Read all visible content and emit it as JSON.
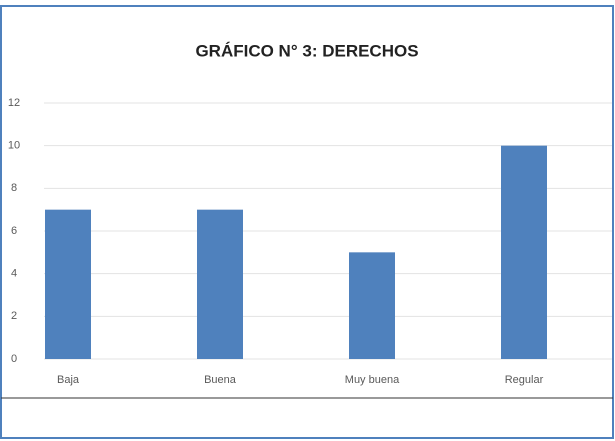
{
  "chart_data": {
    "type": "bar",
    "title": "GRÁFICO N° 3: DERECHOS",
    "categories": [
      "Baja",
      "Buena",
      "Muy buena",
      "Regular"
    ],
    "values": [
      7,
      7,
      5,
      10
    ],
    "color": "#4f81bd",
    "ylim": [
      0,
      12
    ],
    "yticks": [
      0,
      2,
      4,
      6,
      8,
      10,
      12
    ],
    "grid": true
  }
}
